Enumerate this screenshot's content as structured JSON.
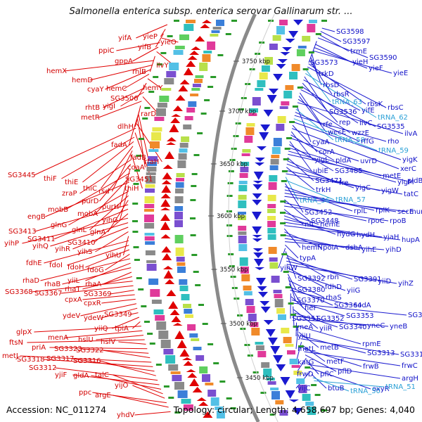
{
  "title": "Salmonella enterica subsp. enterica serovar Gallinarum str. ...",
  "footer": {
    "accession": "Accession: NC_011274",
    "summary": "Topology: circular; Length: 4,658,697 bp; Genes: 4,040"
  },
  "ticks": [
    "3750 kbp",
    "3700 kbp",
    "3650 kbp",
    "3600 kbp",
    "3550 kbp",
    "3500 kbp",
    "3450 kbp"
  ],
  "left_labels": [
    "yifA",
    "yieP",
    "yifB",
    "yieO",
    "ppiC",
    "gppA",
    "ilvY",
    "rhlB",
    "hemX",
    "hemD",
    "cyaY",
    "hemC",
    "hemY",
    "SG3506",
    "rhtB",
    "yigI",
    "rarD",
    "metR",
    "dlhH",
    "fadA",
    "fadB",
    "coaA",
    "rfaH",
    "SG3445",
    "SG3451",
    "thiF",
    "thiE",
    "thiC",
    "rsd",
    "thiH",
    "zraP",
    "purD",
    "purH",
    "mobB",
    "mobA",
    "engB",
    "yihG",
    "glnG",
    "glnL",
    "glnA",
    "SG3413",
    "SG3411",
    "SG3410",
    "yihP",
    "yihQ",
    "yihR",
    "yihS",
    "yihU",
    "fdhE",
    "fdoI",
    "fdoH",
    "fdoG",
    "rhaD",
    "yiiL",
    "rhaB",
    "rhaA",
    "rhaT",
    "SG3368",
    "SG3367",
    "SG3369",
    "cpxA",
    "cpxR",
    "ydeV",
    "ydeW",
    "SG3349",
    "yiiQ",
    "tpiA",
    "glpX",
    "menA",
    "hslU",
    "ftsN",
    "hslV",
    "priA",
    "SG3323",
    "SG3322",
    "metJ",
    "SG3318",
    "SG3317",
    "SG3316",
    "SG3312",
    "yjiF",
    "gldA",
    "talC",
    "yijO",
    "ppc",
    "argE",
    "yhdV"
  ],
  "right_labels": [
    "SG3598",
    "SG3597",
    "trmE",
    "SG3590",
    "SG3573",
    "yieH",
    "yieF",
    "yieE",
    "trkD",
    "rbsD",
    "rbsR",
    "rbsK",
    "rbsC",
    "tRNA_63",
    "tRNA_62",
    "SG3536",
    "yifE",
    "rep",
    "ilvC",
    "SG3535",
    "rfe",
    "wecE",
    "wzzE",
    "ilvA",
    "cyaA",
    "tRNA_58",
    "rffG",
    "rho",
    "tRNA_59",
    "yigK",
    "corA",
    "xerC",
    "yigL",
    "pldA",
    "uvrD",
    "ubiE",
    "SG3485",
    "metE",
    "yigM",
    "pldB",
    "SG3471",
    "fre",
    "yigC",
    "trkH",
    "yigW",
    "tatC",
    "tRNA_56",
    "tRNA_57",
    "SG3452",
    "rplL",
    "rplK",
    "secE",
    "murB",
    "SG3448",
    "rpoC",
    "rpoB",
    "nfi",
    "hemE",
    "hydG",
    "hydH",
    "yjaH",
    "hupA",
    "hemN",
    "polA",
    "dsbA",
    "yihE",
    "yihD",
    "typA",
    "yihW",
    "SG3392",
    "rbn",
    "SG3391",
    "yiiD",
    "yihZ",
    "fdhD",
    "yiiG",
    "SG3380",
    "SG3370",
    "rhaS",
    "fieF",
    "SG3364",
    "sodA",
    "SG3351",
    "SG3352",
    "SG3353",
    "SG3356",
    "yneA",
    "yiiR",
    "SG3340",
    "yneC",
    "yneB",
    "yiiU",
    "rpmE",
    "metL",
    "metB",
    "SG3313",
    "SG3314",
    "katG",
    "metF",
    "frwB",
    "frwC",
    "pflD",
    "frwD",
    "pflC",
    "argH",
    "oxyR",
    "yijC",
    "btuB",
    "tRNA_50",
    "tRNA_51"
  ],
  "colors": {
    "forward": "#e00000",
    "reverse": "#1a1ad0",
    "rna": "#2aa0d6",
    "backbone": "#8a8a8a"
  }
}
